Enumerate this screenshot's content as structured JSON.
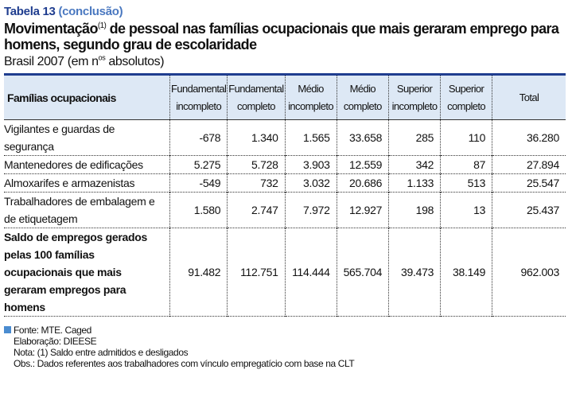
{
  "table_label": "Tabela 13",
  "table_status": "(conclusão)",
  "title_pre": "Movimentação",
  "title_sup": "(1)",
  "title_post": " de pessoal nas famílias ocupacionais que mais geraram emprego para homens, segundo grau de escolaridade",
  "subtitle_pre": "Brasil 2007 (em n",
  "subtitle_sup": "os",
  "subtitle_post": " absolutos)",
  "headers": [
    "Famílias ocupacionais",
    "Fundamental incompleto",
    "Fundamental completo",
    "Médio incompleto",
    "Médio completo",
    "Superior incompleto",
    "Superior completo",
    "Total"
  ],
  "rows": [
    {
      "label": "Vigilantes e guardas de segurança",
      "values": [
        "-678",
        "1.340",
        "1.565",
        "33.658",
        "285",
        "110",
        "36.280"
      ]
    },
    {
      "label": "Mantenedores de edificações",
      "values": [
        "5.275",
        "5.728",
        "3.903",
        "12.559",
        "342",
        "87",
        "27.894"
      ]
    },
    {
      "label": "Almoxarifes e armazenistas",
      "values": [
        "-549",
        "732",
        "3.032",
        "20.686",
        "1.133",
        "513",
        "25.547"
      ]
    },
    {
      "label": "Trabalhadores de embalagem e de etiquetagem",
      "values": [
        "1.580",
        "2.747",
        "7.972",
        "12.927",
        "198",
        "13",
        "25.437"
      ]
    },
    {
      "label": "Saldo de empregos gerados pelas 100 famílias ocupacionais que mais geraram empregos para homens",
      "values": [
        "91.482",
        "112.751",
        "114.444",
        "565.704",
        "39.473",
        "38.149",
        "962.003"
      ]
    }
  ],
  "notes": [
    "Fonte: MTE. Caged",
    "Elaboração: DIEESE",
    "Nota: (1) Saldo entre admitidos e desligados",
    "Obs.: Dados referentes aos trabalhadores com vínculo empregatício com base na CLT"
  ]
}
